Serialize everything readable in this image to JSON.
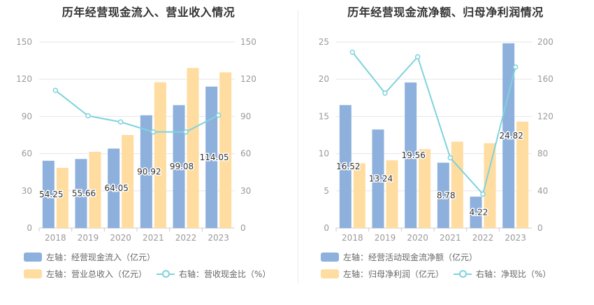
{
  "colors": {
    "bar_primary": "#8eb0dd",
    "bar_secondary": "#ffdca0",
    "line": "#7fd3dc",
    "axis_text": "#999999",
    "grid": "#e6e6ee"
  },
  "chart_data": [
    {
      "type": "bar",
      "title": "历年经营现金流入、营业收入情况",
      "categories": [
        "2018",
        "2019",
        "2020",
        "2021",
        "2022",
        "2023"
      ],
      "left_axis": {
        "ticks": [
          "0",
          "30",
          "60",
          "90",
          "120",
          "150"
        ],
        "ylim": [
          0,
          150
        ]
      },
      "right_axis": {
        "ticks": [
          "0",
          "30",
          "60",
          "90",
          "120",
          "150"
        ],
        "ylim": [
          0,
          150
        ]
      },
      "series": [
        {
          "name": "左轴：经营现金流入（亿元）",
          "kind": "bar",
          "axis": "left",
          "values": [
            54.25,
            55.66,
            64.05,
            90.92,
            99.08,
            114.05
          ],
          "labels": [
            "54.25",
            "55.66",
            "64.05",
            "90.92",
            "99.08",
            "114.05"
          ]
        },
        {
          "name": "左轴：营业总收入（亿元）",
          "kind": "bar",
          "axis": "left",
          "values": [
            48.5,
            61.5,
            75,
            117.5,
            129,
            125.5
          ]
        },
        {
          "name": "右轴：营收现金比（%）",
          "kind": "line",
          "axis": "right",
          "values": [
            111,
            90.5,
            85.5,
            77.5,
            77.5,
            91
          ]
        }
      ],
      "legend_rows": [
        [
          0
        ],
        [
          1,
          2
        ]
      ]
    },
    {
      "type": "bar",
      "title": "历年经营现金流净额、归母净利润情况",
      "categories": [
        "2018",
        "2019",
        "2020",
        "2021",
        "2022",
        "2023"
      ],
      "left_axis": {
        "ticks": [
          "0",
          "5",
          "10",
          "15",
          "20",
          "25"
        ],
        "ylim": [
          0,
          25
        ]
      },
      "right_axis": {
        "ticks": [
          "0",
          "40",
          "80",
          "120",
          "160",
          "200"
        ],
        "ylim": [
          0,
          200
        ]
      },
      "series": [
        {
          "name": "左轴：经营活动现金流净额（亿元）",
          "kind": "bar",
          "axis": "left",
          "values": [
            16.52,
            13.24,
            19.56,
            8.78,
            4.22,
            24.82
          ],
          "labels": [
            "16.52",
            "13.24",
            "19.56",
            "8.78",
            "4.22",
            "24.82"
          ]
        },
        {
          "name": "左轴：归母净利润（亿元）",
          "kind": "bar",
          "axis": "left",
          "values": [
            8.7,
            9.1,
            10.6,
            11.6,
            11.4,
            14.3
          ]
        },
        {
          "name": "右轴：净现比（%）",
          "kind": "line",
          "axis": "right",
          "values": [
            189,
            145,
            184,
            75.5,
            36.5,
            173
          ]
        }
      ],
      "legend_rows": [
        [
          0
        ],
        [
          1,
          2
        ]
      ]
    }
  ]
}
